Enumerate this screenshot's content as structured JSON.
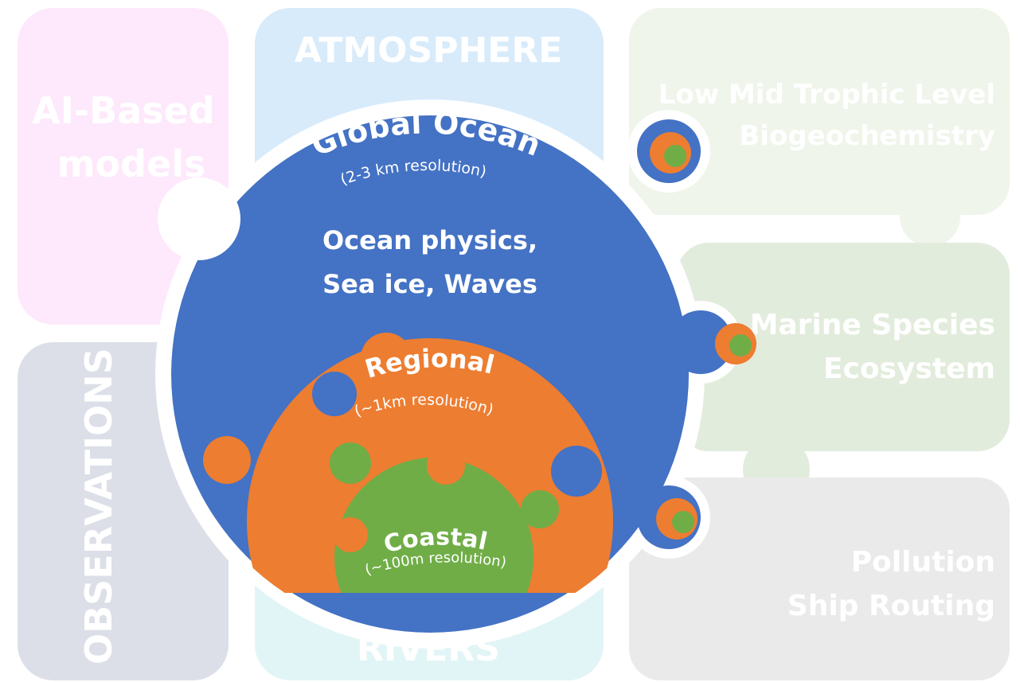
{
  "tiles": {
    "ai_models": {
      "line1": "AI-Based",
      "line2": "models",
      "color": "#fde9fb"
    },
    "atmosphere": {
      "label": "ATMOSPHERE",
      "color": "#d8ebfb"
    },
    "biogeochemistry": {
      "line1": "Low Mid Trophic Level",
      "line2": "Biogeochemistry",
      "color": "#eff5ea"
    },
    "marine_species": {
      "line1": "Marine Species",
      "line2": "Ecosystem",
      "color": "#e2ecdc"
    },
    "observations": {
      "label": "OBSERVATIONS",
      "color": "#dcdfe8"
    },
    "rivers": {
      "label": "RIVERS",
      "color": "#e2f5f6"
    },
    "pollution": {
      "line1": "Pollution",
      "line2": "Ship Routing",
      "color": "#eaeaea"
    }
  },
  "global_ocean": {
    "title": "Global Ocean",
    "resolution": "(2-3 km resolution)",
    "physics_line1": "Ocean physics,",
    "physics_line2": "Sea ice, Waves",
    "color": "#4472c4"
  },
  "regional": {
    "title": "Regional",
    "resolution": "(~1km resolution)",
    "color": "#ed7d31"
  },
  "coastal": {
    "title": "Coastal",
    "resolution": "(~100m resolution)",
    "color": "#70ad47"
  }
}
